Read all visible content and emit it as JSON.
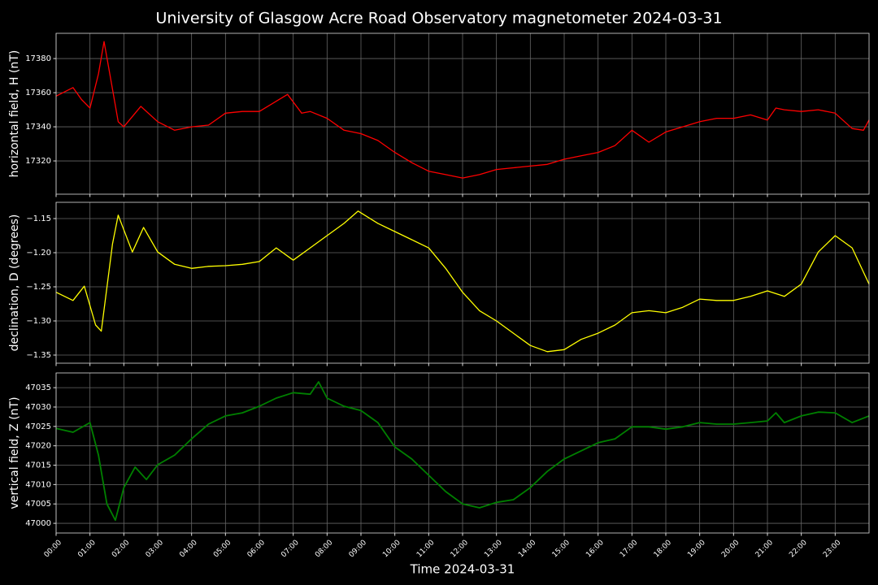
{
  "title": "University of Glasgow Acre Road Observatory magnetometer 2024-03-31",
  "chart_data": [
    {
      "type": "line",
      "ylabel": "horizontal field, H (nT)",
      "grid": true,
      "ylim": [
        17300.5,
        17394.8
      ],
      "yticks": [
        17320,
        17340,
        17360,
        17380
      ],
      "x": [
        "00:00",
        "00:30",
        "00:45",
        "01:00",
        "01:15",
        "01:25",
        "01:40",
        "01:50",
        "02:00",
        "02:30",
        "03:00",
        "03:30",
        "04:00",
        "04:30",
        "05:00",
        "05:30",
        "06:00",
        "06:30",
        "06:50",
        "07:15",
        "07:30",
        "08:00",
        "08:30",
        "09:00",
        "09:30",
        "10:00",
        "10:30",
        "11:00",
        "11:30",
        "12:00",
        "12:30",
        "13:00",
        "13:30",
        "14:00",
        "14:30",
        "15:00",
        "15:30",
        "16:00",
        "16:30",
        "17:00",
        "17:30",
        "18:00",
        "18:30",
        "19:00",
        "19:30",
        "20:00",
        "20:30",
        "21:00",
        "21:15",
        "21:30",
        "22:00",
        "22:30",
        "23:00",
        "23:30",
        "23:50",
        "24:00"
      ],
      "series": [
        {
          "color": "#ff0000",
          "values": [
            17358,
            17363,
            17356,
            17351,
            17371,
            17390,
            17362,
            17343,
            17340,
            17352,
            17343,
            17338,
            17340,
            17341,
            17348,
            17349,
            17349,
            17355,
            17359,
            17348,
            17349,
            17345,
            17338,
            17336,
            17332,
            17325,
            17319,
            17314,
            17312,
            17310,
            17312,
            17315,
            17316,
            17317,
            17318,
            17321,
            17323,
            17325,
            17329,
            17338,
            17331,
            17337,
            17340,
            17343,
            17345,
            17345,
            17347,
            17344,
            17351,
            17350,
            17349,
            17350,
            17348,
            17339,
            17338,
            17344
          ]
        }
      ]
    },
    {
      "type": "line",
      "ylabel": "declination, D (degrees)",
      "grid": true,
      "ylim": [
        -1.3619,
        -1.1262
      ],
      "yticks": [
        {
          "value": -1.35,
          "label": "−1.35"
        },
        {
          "value": -1.3,
          "label": "−1.30"
        },
        {
          "value": -1.25,
          "label": "−1.25"
        },
        {
          "value": -1.2,
          "label": "−1.20"
        },
        {
          "value": -1.15,
          "label": "−1.15"
        }
      ],
      "x": [
        "00:00",
        "00:30",
        "00:50",
        "01:10",
        "01:20",
        "01:40",
        "01:50",
        "02:15",
        "02:35",
        "03:00",
        "03:30",
        "04:00",
        "04:30",
        "05:00",
        "05:30",
        "06:00",
        "06:30",
        "07:00",
        "07:30",
        "08:00",
        "08:30",
        "08:55",
        "09:30",
        "10:00",
        "10:30",
        "11:00",
        "11:30",
        "12:00",
        "12:30",
        "13:00",
        "13:30",
        "14:00",
        "14:30",
        "15:00",
        "15:30",
        "16:00",
        "16:30",
        "17:00",
        "17:30",
        "18:00",
        "18:30",
        "19:00",
        "19:30",
        "20:00",
        "20:30",
        "21:00",
        "21:30",
        "22:00",
        "22:30",
        "23:00",
        "23:30",
        "24:00"
      ],
      "series": [
        {
          "color": "#ffff00",
          "values": [
            -1.258,
            -1.27,
            -1.249,
            -1.306,
            -1.315,
            -1.187,
            -1.145,
            -1.199,
            -1.163,
            -1.199,
            -1.217,
            -1.223,
            -1.22,
            -1.219,
            -1.217,
            -1.213,
            -1.193,
            -1.211,
            -1.193,
            -1.175,
            -1.157,
            -1.139,
            -1.157,
            -1.169,
            -1.181,
            -1.193,
            -1.223,
            -1.258,
            -1.285,
            -1.3,
            -1.318,
            -1.336,
            -1.345,
            -1.342,
            -1.327,
            -1.318,
            -1.306,
            -1.288,
            -1.285,
            -1.288,
            -1.28,
            -1.268,
            -1.27,
            -1.27,
            -1.264,
            -1.256,
            -1.264,
            -1.246,
            -1.199,
            -1.175,
            -1.193,
            -1.246
          ]
        }
      ]
    },
    {
      "type": "line",
      "ylabel": "vertical field, Z (nT)",
      "grid": true,
      "xlabel": "Time 2024-03-31",
      "ylim": [
        46997.5,
        47038.8
      ],
      "yticks": [
        47000,
        47005,
        47010,
        47015,
        47020,
        47025,
        47030,
        47035
      ],
      "xlim": [
        "00:00",
        "24:00"
      ],
      "xticks": [
        "00:00",
        "01:00",
        "02:00",
        "03:00",
        "04:00",
        "05:00",
        "06:00",
        "07:00",
        "08:00",
        "09:00",
        "10:00",
        "11:00",
        "12:00",
        "13:00",
        "14:00",
        "15:00",
        "16:00",
        "17:00",
        "18:00",
        "19:00",
        "20:00",
        "21:00",
        "22:00",
        "23:00"
      ],
      "x": [
        "00:00",
        "00:30",
        "01:00",
        "01:15",
        "01:30",
        "01:45",
        "02:00",
        "02:20",
        "02:40",
        "03:00",
        "03:30",
        "04:00",
        "04:30",
        "05:00",
        "05:30",
        "06:00",
        "06:30",
        "07:00",
        "07:30",
        "07:45",
        "08:00",
        "08:30",
        "09:00",
        "09:30",
        "10:00",
        "10:30",
        "11:00",
        "11:30",
        "12:00",
        "12:30",
        "13:00",
        "13:30",
        "14:00",
        "14:30",
        "15:00",
        "15:30",
        "16:00",
        "16:30",
        "17:00",
        "17:30",
        "18:00",
        "18:30",
        "19:00",
        "19:30",
        "20:00",
        "20:30",
        "21:00",
        "21:15",
        "21:30",
        "22:00",
        "22:30",
        "23:00",
        "23:30",
        "24:00"
      ],
      "series": [
        {
          "color": "#008000",
          "values": [
            47024.5,
            47023.5,
            47026.0,
            47017.6,
            47005.0,
            47000.8,
            47009.2,
            47014.5,
            47011.3,
            47015.1,
            47017.6,
            47021.8,
            47025.6,
            47027.7,
            47028.5,
            47030.2,
            47032.3,
            47033.7,
            47033.3,
            47036.5,
            47032.3,
            47030.2,
            47029.1,
            47026.0,
            47019.7,
            47016.6,
            47012.4,
            47008.2,
            47005.0,
            47004.0,
            47005.4,
            47006.1,
            47009.2,
            47013.4,
            47016.6,
            47018.7,
            47020.8,
            47021.8,
            47024.9,
            47024.9,
            47024.3,
            47024.9,
            47026.0,
            47025.6,
            47025.6,
            47026.0,
            47026.4,
            47028.5,
            47026.0,
            47027.7,
            47028.7,
            47028.5,
            47026.0,
            47027.7
          ]
        }
      ]
    }
  ]
}
